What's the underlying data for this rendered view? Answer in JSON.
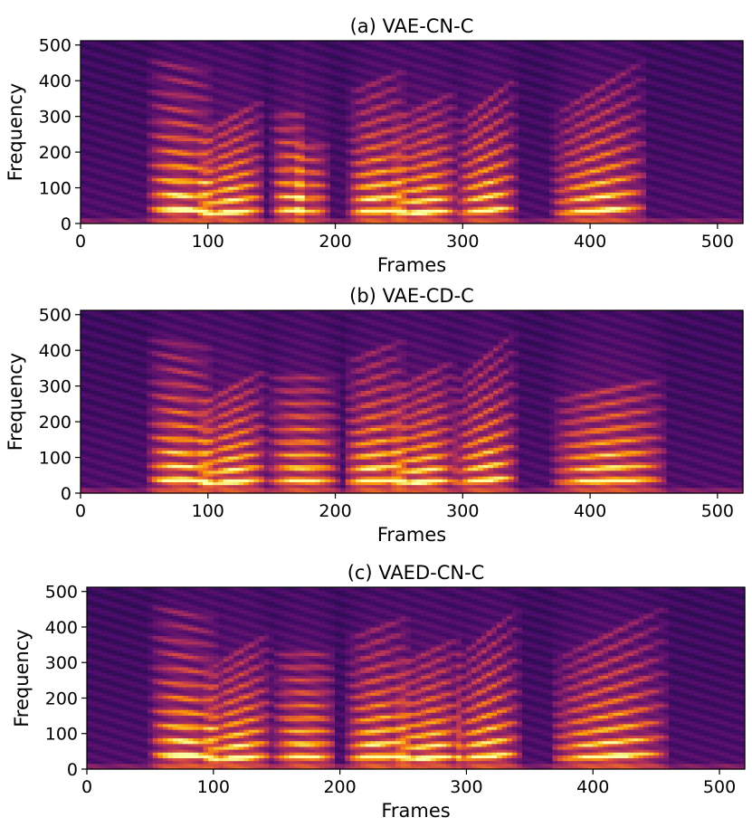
{
  "colors": {
    "colormap": [
      "#000004",
      "#1b0c41",
      "#4a0c6b",
      "#781c6d",
      "#a52c60",
      "#cf4446",
      "#ed6925",
      "#fb9b06",
      "#f7d13d",
      "#fcffa4"
    ],
    "background": "#ffffff"
  },
  "chart_data": [
    {
      "type": "heatmap",
      "title": "(a) VAE-CN-C",
      "xlabel": "Frames",
      "ylabel": "Frequency",
      "xlim": [
        0,
        520
      ],
      "ylim": [
        0,
        512
      ],
      "xticks": [
        0,
        100,
        200,
        300,
        400,
        500
      ],
      "yticks": [
        0,
        100,
        200,
        300,
        400,
        500
      ],
      "grid": false,
      "colormap": "inferno",
      "segments": [
        {
          "start": 58,
          "end": 98,
          "f0": 40,
          "harmonics": 11,
          "slope": -2,
          "energy": 1.0
        },
        {
          "start": 98,
          "end": 140,
          "f0": 33,
          "harmonics": 9,
          "slope": 8,
          "energy": 0.95
        },
        {
          "start": 155,
          "end": 172,
          "f0": 38,
          "harmonics": 8,
          "slope": 0,
          "energy": 0.85
        },
        {
          "start": 172,
          "end": 190,
          "f0": 36,
          "harmonics": 6,
          "slope": 0,
          "energy": 0.7
        },
        {
          "start": 215,
          "end": 250,
          "f0": 36,
          "harmonics": 11,
          "slope": 4,
          "energy": 1.0
        },
        {
          "start": 250,
          "end": 292,
          "f0": 33,
          "harmonics": 10,
          "slope": 6,
          "energy": 0.95
        },
        {
          "start": 300,
          "end": 338,
          "f0": 38,
          "harmonics": 9,
          "slope": 10,
          "energy": 0.95
        },
        {
          "start": 375,
          "end": 440,
          "f0": 38,
          "harmonics": 10,
          "slope": 12,
          "energy": 0.95
        }
      ]
    },
    {
      "type": "heatmap",
      "title": "(b) VAE-CD-C",
      "xlabel": "Frames",
      "ylabel": "Frequency",
      "xlim": [
        0,
        520
      ],
      "ylim": [
        0,
        512
      ],
      "xticks": [
        0,
        100,
        200,
        300,
        400,
        500
      ],
      "yticks": [
        0,
        100,
        200,
        300,
        400,
        500
      ],
      "grid": false,
      "colormap": "inferno",
      "segments": [
        {
          "start": 58,
          "end": 98,
          "f0": 38,
          "harmonics": 11,
          "slope": -2,
          "energy": 1.0
        },
        {
          "start": 98,
          "end": 142,
          "f0": 33,
          "harmonics": 9,
          "slope": 8,
          "energy": 0.95
        },
        {
          "start": 152,
          "end": 198,
          "f0": 36,
          "harmonics": 9,
          "slope": 0,
          "energy": 0.9
        },
        {
          "start": 212,
          "end": 250,
          "f0": 36,
          "harmonics": 11,
          "slope": 4,
          "energy": 1.0
        },
        {
          "start": 250,
          "end": 290,
          "f0": 33,
          "harmonics": 10,
          "slope": 6,
          "energy": 0.95
        },
        {
          "start": 298,
          "end": 338,
          "f0": 38,
          "harmonics": 10,
          "slope": 10,
          "energy": 0.95
        },
        {
          "start": 375,
          "end": 455,
          "f0": 36,
          "harmonics": 8,
          "slope": 6,
          "energy": 0.95
        }
      ]
    },
    {
      "type": "heatmap",
      "title": "(c) VAED-CN-C",
      "xlabel": "Frames",
      "ylabel": "Frequency",
      "xlim": [
        0,
        520
      ],
      "ylim": [
        0,
        512
      ],
      "xticks": [
        0,
        100,
        200,
        300,
        400,
        500
      ],
      "yticks": [
        0,
        100,
        200,
        300,
        400,
        500
      ],
      "grid": false,
      "colormap": "inferno",
      "segments": [
        {
          "start": 55,
          "end": 98,
          "f0": 40,
          "harmonics": 11,
          "slope": -2,
          "energy": 1.0
        },
        {
          "start": 98,
          "end": 142,
          "f0": 33,
          "harmonics": 10,
          "slope": 8,
          "energy": 0.95
        },
        {
          "start": 152,
          "end": 192,
          "f0": 36,
          "harmonics": 9,
          "slope": 0,
          "energy": 0.9
        },
        {
          "start": 210,
          "end": 250,
          "f0": 36,
          "harmonics": 11,
          "slope": 4,
          "energy": 1.0
        },
        {
          "start": 250,
          "end": 292,
          "f0": 33,
          "harmonics": 10,
          "slope": 6,
          "energy": 0.95
        },
        {
          "start": 296,
          "end": 338,
          "f0": 38,
          "harmonics": 10,
          "slope": 10,
          "energy": 0.95
        },
        {
          "start": 372,
          "end": 455,
          "f0": 38,
          "harmonics": 10,
          "slope": 12,
          "energy": 0.95
        }
      ]
    }
  ]
}
